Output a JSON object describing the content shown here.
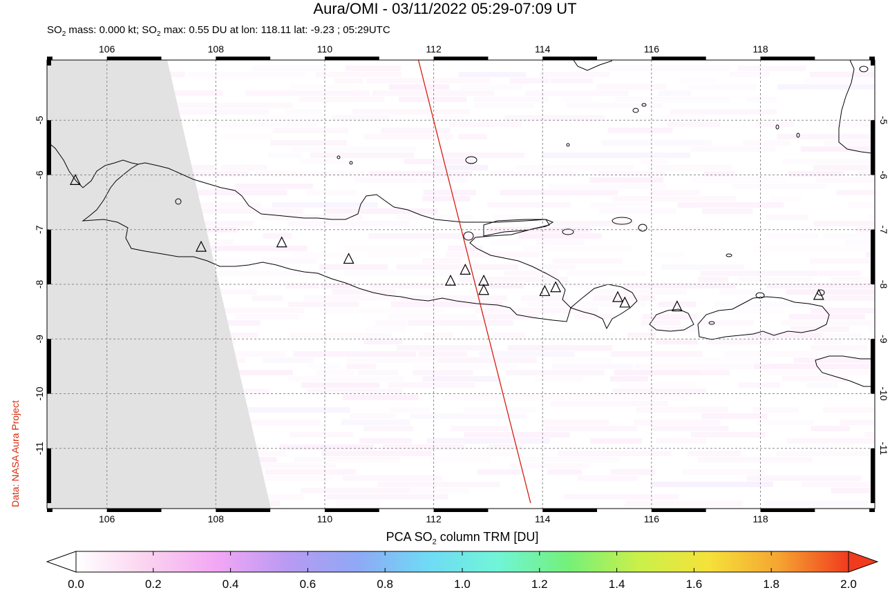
{
  "title": "Aura/OMI - 03/11/2022 05:29-07:09 UT",
  "subtitle": {
    "mass_prefix": "SO",
    "mass_text": " mass: 0.000 kt; SO",
    "max_text": " max: 0.55 DU at lon: 118.11 lat: -9.23 ; 05:29UTC",
    "sub": "2"
  },
  "credit": "Data: NASA Aura Project",
  "colorbar": {
    "title_prefix": "PCA SO",
    "title_sub": "2",
    "title_suffix": " column TRM [DU]",
    "ticks": [
      "0.0",
      "0.2",
      "0.4",
      "0.6",
      "0.8",
      "1.0",
      "1.2",
      "1.4",
      "1.6",
      "1.8",
      "2.0"
    ],
    "range": [
      0.0,
      2.0
    ],
    "colors": [
      "#ffffff",
      "#fbd3ef",
      "#f2a7f5",
      "#b99af2",
      "#8fa8f5",
      "#6fdaf5",
      "#70f5d8",
      "#74f07a",
      "#c9f04a",
      "#f5e23a",
      "#f5a531",
      "#f03b1e"
    ]
  },
  "map": {
    "lon_ticks": [
      "106",
      "108",
      "110",
      "112",
      "114",
      "116",
      "118"
    ],
    "lat_ticks": [
      "-5",
      "-6",
      "-7",
      "-8",
      "-9",
      "-10",
      "-11"
    ],
    "lon_values": [
      106,
      108,
      110,
      112,
      114,
      116,
      118
    ],
    "lat_values": [
      -5,
      -6,
      -7,
      -8,
      -9,
      -10,
      -11
    ],
    "lon_range": [
      104.9,
      120.1
    ],
    "lat_range": [
      -12.1,
      -3.9
    ],
    "volcanoes": [
      {
        "lon": 105.42,
        "lat": -6.1
      },
      {
        "lon": 107.73,
        "lat": -7.32
      },
      {
        "lon": 109.21,
        "lat": -7.24
      },
      {
        "lon": 110.44,
        "lat": -7.54
      },
      {
        "lon": 112.31,
        "lat": -7.94
      },
      {
        "lon": 112.58,
        "lat": -7.74
      },
      {
        "lon": 112.92,
        "lat": -7.94
      },
      {
        "lon": 112.92,
        "lat": -8.11
      },
      {
        "lon": 114.04,
        "lat": -8.13
      },
      {
        "lon": 114.24,
        "lat": -8.06
      },
      {
        "lon": 115.38,
        "lat": -8.24
      },
      {
        "lon": 115.51,
        "lat": -8.34
      },
      {
        "lon": 116.47,
        "lat": -8.41
      },
      {
        "lon": 119.07,
        "lat": -8.2
      }
    ],
    "orbit_track": {
      "start": {
        "lon": 111.72,
        "lat": -3.9
      },
      "end": {
        "lon": 113.78,
        "lat": -12.0
      }
    }
  }
}
